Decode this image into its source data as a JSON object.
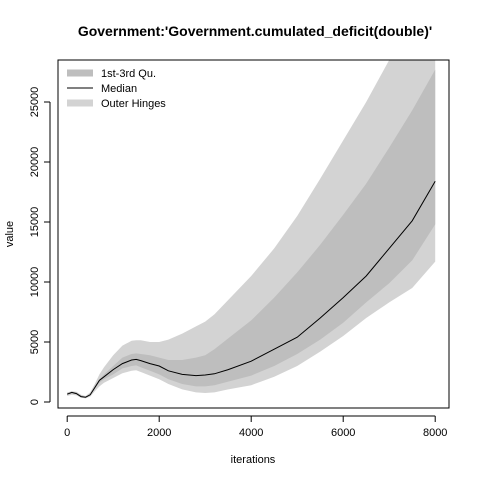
{
  "chart_data": {
    "type": "area",
    "title": "Government:'Government.cumulated_deficit(double)'",
    "xlabel": "iterations",
    "ylabel": "value",
    "xlim": [
      -200,
      8300
    ],
    "ylim": [
      -500,
      28500
    ],
    "x_ticks": [
      0,
      2000,
      4000,
      6000,
      8000
    ],
    "y_ticks": [
      0,
      5000,
      10000,
      15000,
      20000,
      25000
    ],
    "grid": false,
    "legend_position": "top-left",
    "legend": [
      {
        "label": "1st-3rd Qu.",
        "color": "#bebebe",
        "kind": "thick"
      },
      {
        "label": "Median",
        "color": "#000000",
        "kind": "line"
      },
      {
        "label": "Outer Hinges",
        "color": "#d3d3d3",
        "kind": "thick"
      }
    ],
    "colors": {
      "outer_hinges": "#d3d3d3",
      "quartiles": "#bebebe",
      "median": "#000000"
    },
    "x": [
      0,
      100,
      200,
      300,
      400,
      500,
      600,
      700,
      800,
      1000,
      1200,
      1400,
      1500,
      1600,
      1800,
      2000,
      2200,
      2500,
      2800,
      3000,
      3200,
      3500,
      4000,
      4500,
      5000,
      5500,
      6000,
      6500,
      7000,
      7500,
      8000
    ],
    "series": [
      {
        "name": "Outer Hinges",
        "lower": [
          500,
          600,
          550,
          350,
          300,
          450,
          900,
          1300,
          1600,
          2000,
          2400,
          2600,
          2650,
          2500,
          2200,
          1900,
          1500,
          1050,
          800,
          750,
          800,
          1050,
          1400,
          2100,
          3000,
          4200,
          5500,
          7000,
          8300,
          9500,
          11700
        ],
        "upper": [
          800,
          900,
          850,
          600,
          500,
          800,
          1500,
          2300,
          2900,
          3900,
          4700,
          5100,
          5150,
          5150,
          5000,
          5000,
          5200,
          5700,
          6300,
          6700,
          7300,
          8500,
          10500,
          12800,
          15500,
          18600,
          21800,
          25000,
          28500,
          28500,
          28500
        ]
      },
      {
        "name": "1st-3rd Qu.",
        "lower": [
          600,
          700,
          650,
          450,
          350,
          550,
          1100,
          1600,
          1900,
          2300,
          2800,
          3000,
          3050,
          2900,
          2600,
          2300,
          1900,
          1500,
          1300,
          1300,
          1400,
          1700,
          2200,
          3000,
          4000,
          5200,
          6600,
          8300,
          9900,
          11800,
          14800
        ],
        "upper": [
          750,
          850,
          800,
          550,
          450,
          700,
          1350,
          1900,
          2300,
          3000,
          3700,
          4000,
          4050,
          4000,
          3900,
          3700,
          3500,
          3500,
          3700,
          3900,
          4400,
          5300,
          6800,
          8700,
          10800,
          13100,
          15600,
          18200,
          21200,
          24300,
          27700
        ]
      },
      {
        "name": "Median",
        "values": [
          650,
          800,
          700,
          450,
          400,
          600,
          1200,
          1800,
          2100,
          2700,
          3200,
          3500,
          3550,
          3450,
          3200,
          3000,
          2600,
          2300,
          2200,
          2250,
          2350,
          2700,
          3400,
          4400,
          5400,
          7000,
          8700,
          10500,
          12800,
          15100,
          18400
        ]
      }
    ]
  }
}
